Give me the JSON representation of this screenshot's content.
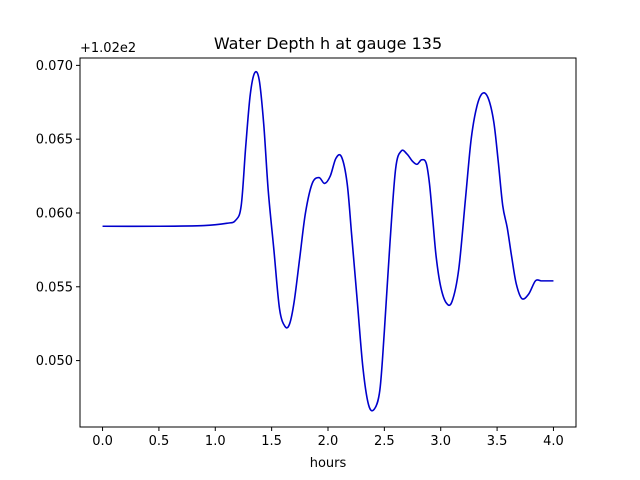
{
  "chart_data": {
    "type": "line",
    "title": "Water Depth h at gauge 135",
    "xlabel": "hours",
    "ylabel": "",
    "y_offset_label": "+1.02e2",
    "xlim": [
      -0.2,
      4.2
    ],
    "ylim": [
      0.0455,
      0.0705
    ],
    "x_ticks": [
      0.0,
      0.5,
      1.0,
      1.5,
      2.0,
      2.5,
      3.0,
      3.5,
      4.0
    ],
    "x_tick_labels": [
      "0.0",
      "0.5",
      "1.0",
      "1.5",
      "2.0",
      "2.5",
      "3.0",
      "3.5",
      "4.0"
    ],
    "y_ticks": [
      0.05,
      0.055,
      0.06,
      0.065,
      0.07
    ],
    "y_tick_labels": [
      "0.050",
      "0.055",
      "0.060",
      "0.065",
      "0.070"
    ],
    "grid": false,
    "colors": {
      "line": "#0000cc",
      "axis": "#000000",
      "background": "#ffffff"
    },
    "series": [
      {
        "x": [
          0.0,
          0.5,
          0.9,
          1.1,
          1.18,
          1.23,
          1.27,
          1.31,
          1.35,
          1.39,
          1.43,
          1.47,
          1.52,
          1.57,
          1.62,
          1.66,
          1.7,
          1.75,
          1.8,
          1.86,
          1.92,
          1.97,
          2.02,
          2.07,
          2.12,
          2.17,
          2.21,
          2.26,
          2.31,
          2.36,
          2.41,
          2.46,
          2.5,
          2.55,
          2.6,
          2.65,
          2.7,
          2.75,
          2.79,
          2.83,
          2.87,
          2.9,
          2.93,
          2.96,
          3.0,
          3.05,
          3.1,
          3.16,
          3.22,
          3.27,
          3.32,
          3.37,
          3.42,
          3.47,
          3.51,
          3.55,
          3.59,
          3.63,
          3.67,
          3.72,
          3.78,
          3.84,
          3.89,
          3.93,
          3.97,
          4.0
        ],
        "y": [
          0.0591,
          0.0591,
          0.05915,
          0.0593,
          0.0595,
          0.0605,
          0.0645,
          0.068,
          0.0695,
          0.069,
          0.066,
          0.0615,
          0.0575,
          0.0535,
          0.0523,
          0.0525,
          0.054,
          0.057,
          0.06,
          0.062,
          0.0624,
          0.062,
          0.0625,
          0.0637,
          0.0638,
          0.062,
          0.0585,
          0.054,
          0.0495,
          0.047,
          0.0467,
          0.048,
          0.052,
          0.058,
          0.063,
          0.0642,
          0.064,
          0.0635,
          0.0633,
          0.0636,
          0.0634,
          0.062,
          0.0595,
          0.057,
          0.055,
          0.0539,
          0.054,
          0.0562,
          0.061,
          0.065,
          0.0672,
          0.0681,
          0.0678,
          0.0662,
          0.0635,
          0.0605,
          0.059,
          0.057,
          0.0552,
          0.0542,
          0.0545,
          0.0554,
          0.0554,
          0.0554,
          0.0554,
          0.0554
        ]
      }
    ]
  }
}
